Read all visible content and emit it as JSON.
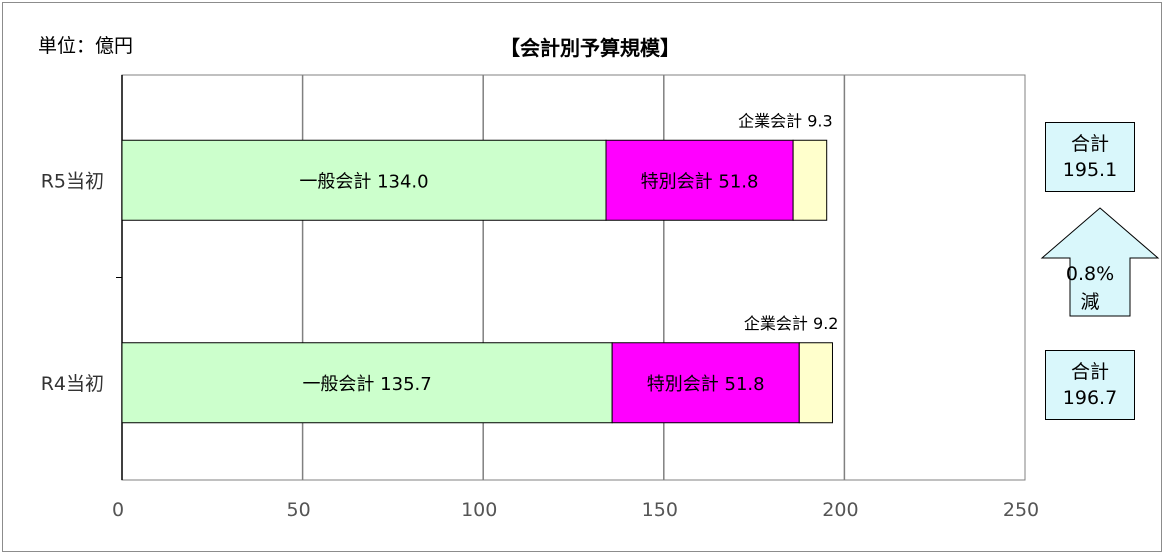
{
  "chart_data": {
    "type": "bar",
    "orientation": "horizontal",
    "stacked": true,
    "title": "【会計別予算規模】",
    "unit_label": "単位：億円",
    "categories": [
      "R5当初",
      "R4当初"
    ],
    "series": [
      {
        "name": "一般会計",
        "values": [
          134.0,
          135.7
        ],
        "labels": [
          "一般会計 134.0",
          "一般会計 135.7"
        ],
        "color": "#ccffcc"
      },
      {
        "name": "特別会計",
        "values": [
          51.8,
          51.8
        ],
        "labels": [
          "特別会計 51.8",
          "特別会計 51.8"
        ],
        "color": "#ff00ff"
      },
      {
        "name": "企業会計",
        "values": [
          9.3,
          9.2
        ],
        "labels": [
          "企業会計 9.3",
          "企業会計 9.2"
        ],
        "color": "#ffffcc"
      }
    ],
    "xlim": [
      0,
      250
    ],
    "xticks": [
      "0",
      "50",
      "100",
      "150",
      "200",
      "250"
    ],
    "grid": true
  },
  "totals": {
    "r5": {
      "label": "合計",
      "value": "195.1"
    },
    "r4": {
      "label": "合計",
      "value": "196.7"
    }
  },
  "change": {
    "percent": "0.8%",
    "direction": "減"
  },
  "colors": {
    "arrow_fill": "#d9f7fb",
    "grid": "#808080"
  }
}
